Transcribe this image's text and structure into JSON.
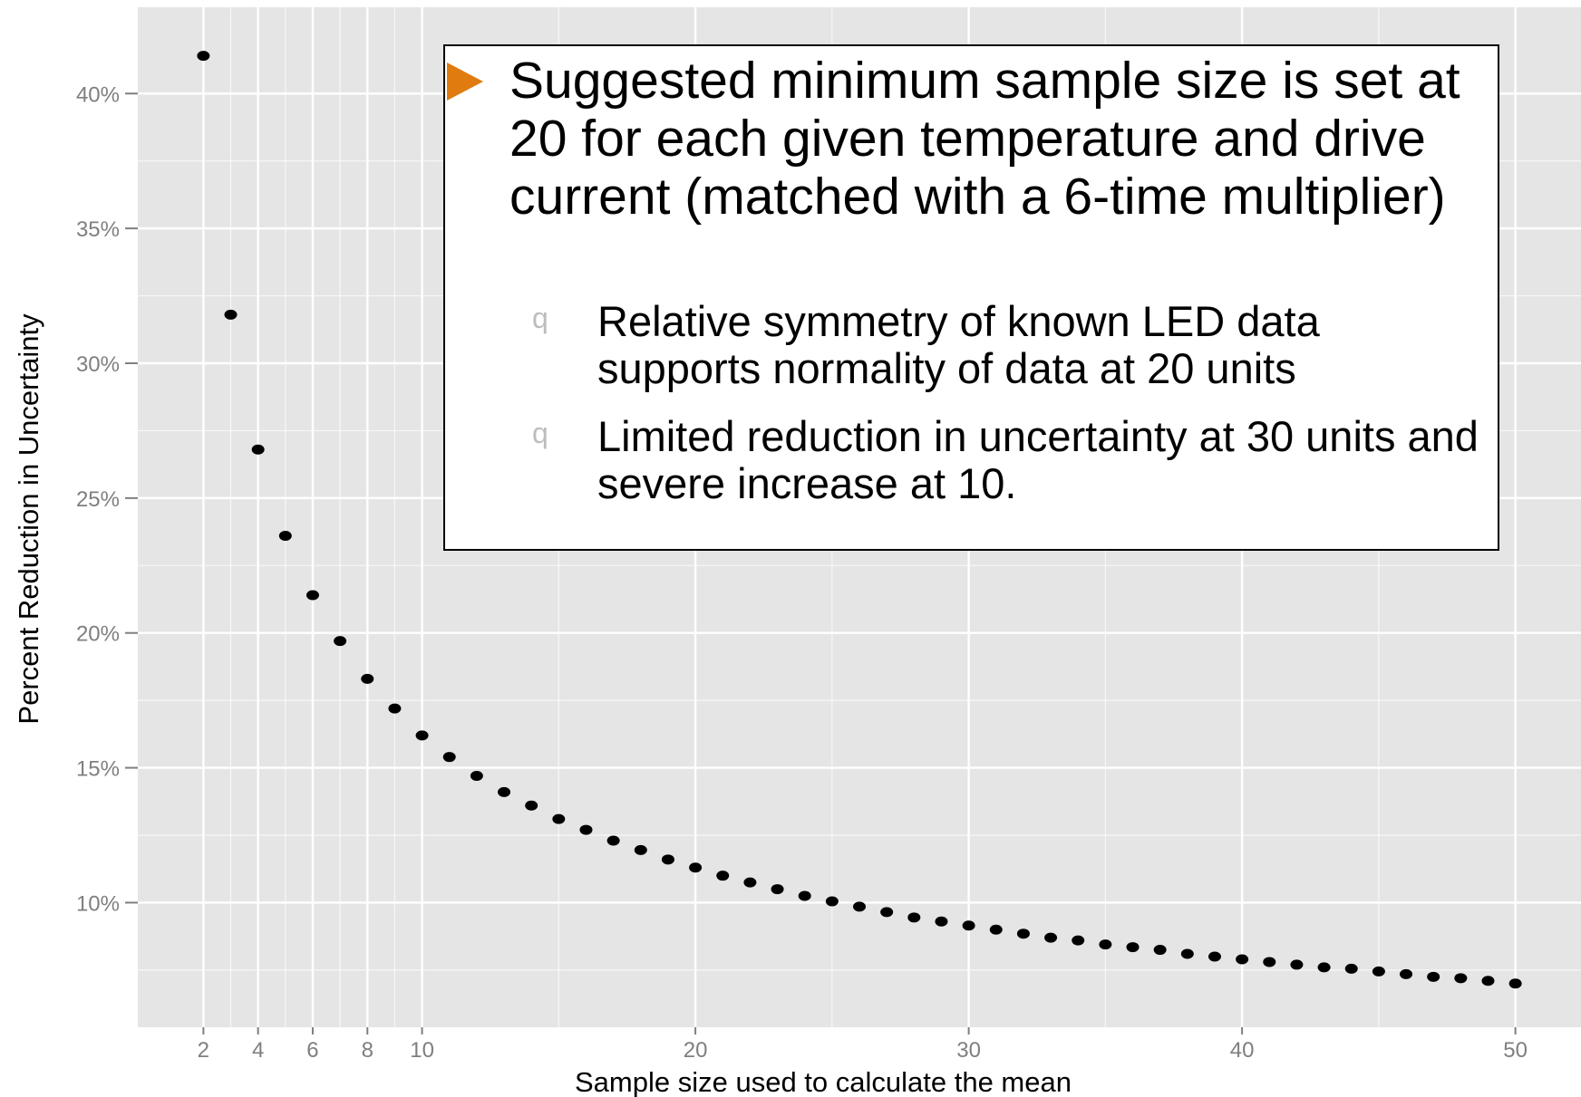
{
  "chart_data": {
    "type": "scatter",
    "xlabel": "Sample size used to calculate the mean",
    "ylabel": "Percent Reduction in Uncertainty",
    "xlim": [
      -0.4,
      52.4
    ],
    "ylim": [
      5.38,
      43.2
    ],
    "x_ticks": [
      2,
      4,
      6,
      8,
      10,
      20,
      30,
      40,
      50
    ],
    "x_tick_labels": [
      "2",
      "4",
      "6",
      "8",
      "10",
      "20",
      "30",
      "40",
      "50"
    ],
    "y_ticks": [
      10,
      15,
      20,
      25,
      30,
      35,
      40
    ],
    "y_tick_labels": [
      "10%",
      "15%",
      "20%",
      "25%",
      "30%",
      "35%",
      "40%"
    ],
    "grid": true,
    "point_color": "#000000",
    "panel_background": "#e5e5e5",
    "grid_color": "#ffffff",
    "points": [
      {
        "x": 2,
        "y": 41.4
      },
      {
        "x": 3,
        "y": 31.8
      },
      {
        "x": 4,
        "y": 26.8
      },
      {
        "x": 5,
        "y": 23.6
      },
      {
        "x": 6,
        "y": 21.4
      },
      {
        "x": 7,
        "y": 19.7
      },
      {
        "x": 8,
        "y": 18.3
      },
      {
        "x": 9,
        "y": 17.2
      },
      {
        "x": 10,
        "y": 16.2
      },
      {
        "x": 11,
        "y": 15.4
      },
      {
        "x": 12,
        "y": 14.7
      },
      {
        "x": 13,
        "y": 14.1
      },
      {
        "x": 14,
        "y": 13.6
      },
      {
        "x": 15,
        "y": 13.1
      },
      {
        "x": 16,
        "y": 12.7
      },
      {
        "x": 17,
        "y": 12.3
      },
      {
        "x": 18,
        "y": 11.95
      },
      {
        "x": 19,
        "y": 11.6
      },
      {
        "x": 20,
        "y": 11.3
      },
      {
        "x": 21,
        "y": 11.0
      },
      {
        "x": 22,
        "y": 10.75
      },
      {
        "x": 23,
        "y": 10.5
      },
      {
        "x": 24,
        "y": 10.25
      },
      {
        "x": 25,
        "y": 10.05
      },
      {
        "x": 26,
        "y": 9.85
      },
      {
        "x": 27,
        "y": 9.65
      },
      {
        "x": 28,
        "y": 9.45
      },
      {
        "x": 29,
        "y": 9.3
      },
      {
        "x": 30,
        "y": 9.15
      },
      {
        "x": 31,
        "y": 9.0
      },
      {
        "x": 32,
        "y": 8.85
      },
      {
        "x": 33,
        "y": 8.7
      },
      {
        "x": 34,
        "y": 8.6
      },
      {
        "x": 35,
        "y": 8.45
      },
      {
        "x": 36,
        "y": 8.35
      },
      {
        "x": 37,
        "y": 8.25
      },
      {
        "x": 38,
        "y": 8.1
      },
      {
        "x": 39,
        "y": 8.0
      },
      {
        "x": 40,
        "y": 7.9
      },
      {
        "x": 41,
        "y": 7.8
      },
      {
        "x": 42,
        "y": 7.7
      },
      {
        "x": 43,
        "y": 7.6
      },
      {
        "x": 44,
        "y": 7.55
      },
      {
        "x": 45,
        "y": 7.45
      },
      {
        "x": 46,
        "y": 7.35
      },
      {
        "x": 47,
        "y": 7.25
      },
      {
        "x": 48,
        "y": 7.2
      },
      {
        "x": 49,
        "y": 7.1
      },
      {
        "x": 50,
        "y": 7.0
      }
    ]
  },
  "callout": {
    "main_bullet": "Suggested minimum sample size is set at 20 for each given temperature and drive current (matched with a 6-time multiplier)",
    "main_marker_color": "#e07b10",
    "sub_marker": "q",
    "sub_bullets": [
      "Relative symmetry of known LED data supports normality of data at 20 units",
      "Limited reduction in uncertainty at 30 units and severe increase at 10."
    ]
  }
}
